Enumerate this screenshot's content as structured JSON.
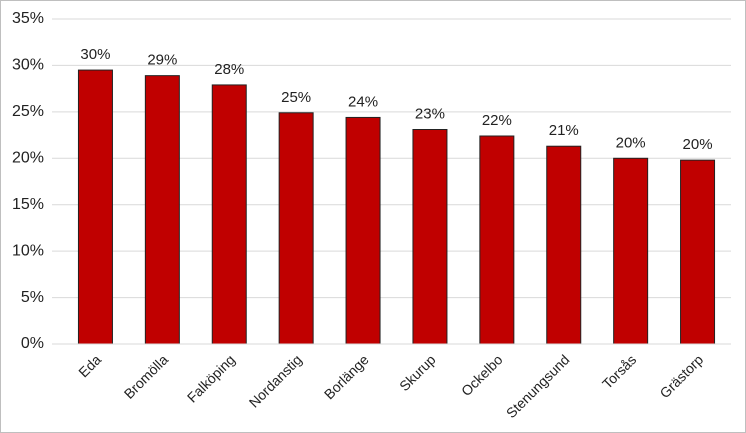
{
  "chart_data": {
    "type": "bar",
    "categories": [
      "Eda",
      "Bromölla",
      "Falköping",
      "Nordanstig",
      "Borlänge",
      "Skurup",
      "Ockelbo",
      "Stenungsund",
      "Torsås",
      "Grästorp"
    ],
    "values": [
      29.5,
      28.9,
      27.9,
      24.9,
      24.4,
      23.1,
      22.4,
      21.3,
      20.0,
      19.8
    ],
    "value_labels": [
      "30%",
      "29%",
      "28%",
      "25%",
      "24%",
      "23%",
      "22%",
      "21%",
      "20%",
      "20%"
    ],
    "color": "#c00000",
    "ylim": [
      0,
      35
    ],
    "yticks": [
      {
        "value": 0,
        "label": "0%"
      },
      {
        "value": 5,
        "label": "5%"
      },
      {
        "value": 10,
        "label": "10%"
      },
      {
        "value": 15,
        "label": "15%"
      },
      {
        "value": 20,
        "label": "20%"
      },
      {
        "value": 25,
        "label": "25%"
      },
      {
        "value": 30,
        "label": "30%"
      },
      {
        "value": 35,
        "label": "35%"
      }
    ],
    "grid": true
  }
}
